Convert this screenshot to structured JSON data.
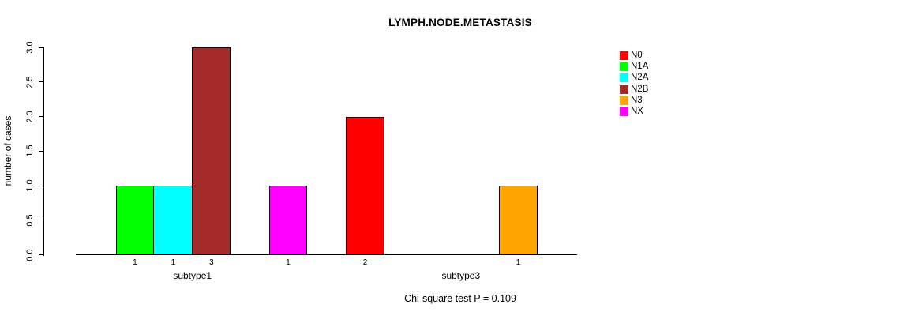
{
  "chart_data": {
    "type": "bar",
    "title": "LYMPH.NODE.METASTASIS",
    "xlabel": "",
    "ylabel": "number of cases",
    "ylim": [
      0,
      3
    ],
    "ytick_step": 0.5,
    "ytick_labels": [
      "0.0",
      "0.5",
      "1.0",
      "1.5",
      "2.0",
      "2.5",
      "3.0"
    ],
    "grid": false,
    "legend_position": "right",
    "categories": [
      "subtype1",
      "subtype3"
    ],
    "series": [
      {
        "name": "N0",
        "color": "#FF0000",
        "values": [
          0,
          2
        ]
      },
      {
        "name": "N1A",
        "color": "#00FF00",
        "values": [
          1,
          0
        ]
      },
      {
        "name": "N2A",
        "color": "#00FFFF",
        "values": [
          1,
          0
        ]
      },
      {
        "name": "N2B",
        "color": "#A52A2A",
        "values": [
          3,
          0
        ]
      },
      {
        "name": "N3",
        "color": "#FFA500",
        "values": [
          0,
          1
        ]
      },
      {
        "name": "NX",
        "color": "#FF00FF",
        "values": [
          1,
          0
        ]
      }
    ],
    "bar_value_labels": "values shown under each nonzero bar",
    "note": "Chi-square test P = 0.109",
    "axis_color": "#000000",
    "background_color": "#FFFFFF"
  }
}
